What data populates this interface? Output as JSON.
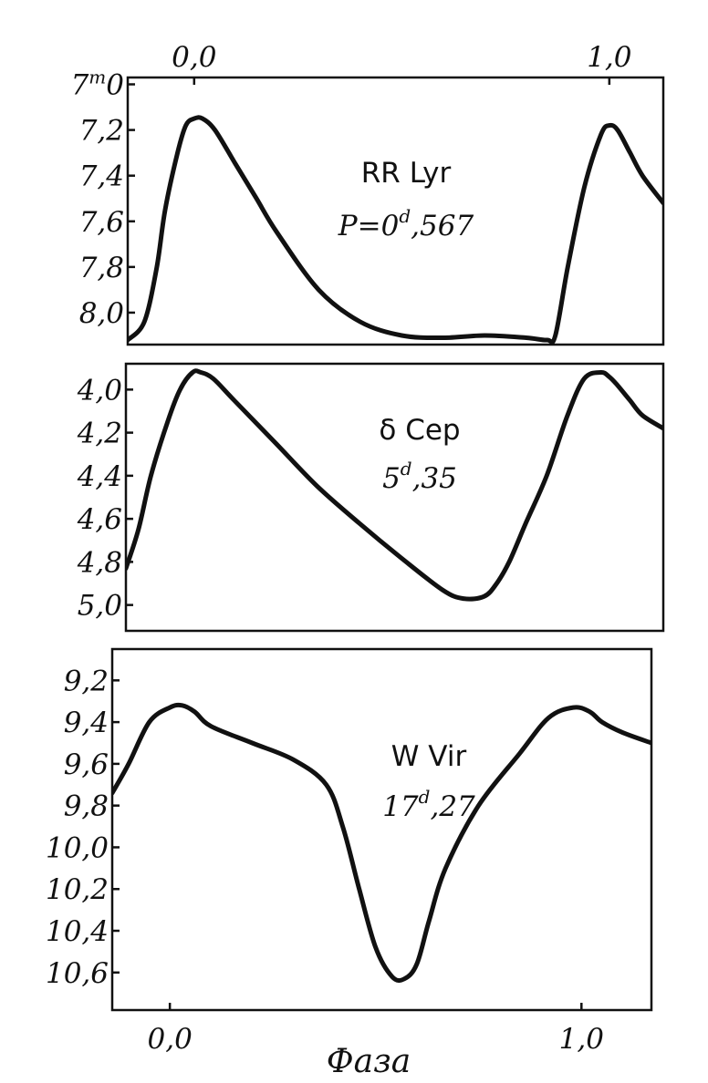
{
  "x_label": "Фаза",
  "chart_data": [
    {
      "type": "line",
      "name": "RR Lyr",
      "period_prefix": "P=0",
      "period_sup": "d",
      "period_suffix": ",567",
      "x_axis_position": "top",
      "x_ticks": [
        0.0,
        1.0
      ],
      "x_tick_labels": [
        "0,0",
        "1,0"
      ],
      "xlim": [
        -0.16,
        1.13
      ],
      "ylim": [
        8.14,
        6.97
      ],
      "y_ticks": [
        7.0,
        7.2,
        7.4,
        7.6,
        7.8,
        8.0
      ],
      "y_tick_labels": [
        "7",
        "7,2",
        "7,4",
        "7,6",
        "7,8",
        "8,0"
      ],
      "y_first_sup": "m",
      "y_first_suffix": "0",
      "x": [
        -0.16,
        -0.12,
        -0.09,
        -0.07,
        -0.04,
        -0.02,
        0.0,
        0.02,
        0.05,
        0.1,
        0.15,
        0.2,
        0.3,
        0.4,
        0.5,
        0.6,
        0.7,
        0.8,
        0.85,
        0.87,
        0.9,
        0.94,
        0.98,
        1.0,
        1.02,
        1.05,
        1.08,
        1.13
      ],
      "y": [
        8.12,
        8.04,
        7.8,
        7.55,
        7.3,
        7.18,
        7.15,
        7.15,
        7.2,
        7.35,
        7.5,
        7.65,
        7.9,
        8.04,
        8.1,
        8.11,
        8.1,
        8.11,
        8.12,
        8.1,
        7.8,
        7.45,
        7.22,
        7.18,
        7.2,
        7.3,
        7.4,
        7.52
      ]
    },
    {
      "type": "line",
      "name": "δ Cep",
      "period_prefix": "5",
      "period_sup": "d",
      "period_suffix": ",35",
      "x_axis_position": "none",
      "xlim": [
        -0.16,
        1.13
      ],
      "ylim": [
        5.12,
        3.88
      ],
      "y_ticks": [
        4.0,
        4.2,
        4.4,
        4.6,
        4.8,
        5.0
      ],
      "y_tick_labels": [
        "4,0",
        "4,2",
        "4,4",
        "4,6",
        "4,8",
        "5,0"
      ],
      "x": [
        -0.16,
        -0.13,
        -0.1,
        -0.06,
        -0.03,
        0.0,
        0.02,
        0.05,
        0.1,
        0.2,
        0.3,
        0.4,
        0.5,
        0.6,
        0.65,
        0.7,
        0.73,
        0.76,
        0.8,
        0.85,
        0.9,
        0.94,
        0.98,
        1.0,
        1.02,
        1.05,
        1.08,
        1.13
      ],
      "y": [
        4.83,
        4.65,
        4.4,
        4.15,
        4.0,
        3.92,
        3.92,
        3.95,
        4.05,
        4.25,
        4.45,
        4.62,
        4.78,
        4.93,
        4.97,
        4.96,
        4.9,
        4.8,
        4.62,
        4.4,
        4.12,
        3.95,
        3.92,
        3.94,
        3.98,
        4.05,
        4.12,
        4.18
      ]
    },
    {
      "type": "line",
      "name": "W Vir",
      "period_prefix": "17",
      "period_sup": "d",
      "period_suffix": ",27",
      "x_axis_position": "bottom",
      "x_ticks": [
        0.0,
        1.0
      ],
      "x_tick_labels": [
        "0,0",
        "1,0"
      ],
      "xlim": [
        -0.14,
        1.17
      ],
      "ylim": [
        10.78,
        9.05
      ],
      "y_ticks": [
        9.2,
        9.4,
        9.6,
        9.8,
        10.0,
        10.2,
        10.4,
        10.6
      ],
      "y_tick_labels": [
        "9,2",
        "9,4",
        "9,6",
        "9,8",
        "10,0",
        "10,2",
        "10,4",
        "10,6"
      ],
      "x": [
        -0.14,
        -0.1,
        -0.05,
        0.0,
        0.03,
        0.06,
        0.1,
        0.2,
        0.3,
        0.38,
        0.42,
        0.46,
        0.5,
        0.54,
        0.57,
        0.6,
        0.63,
        0.67,
        0.75,
        0.85,
        0.92,
        0.98,
        1.02,
        1.05,
        1.1,
        1.17
      ],
      "y": [
        9.74,
        9.6,
        9.4,
        9.33,
        9.32,
        9.35,
        9.42,
        9.5,
        9.58,
        9.7,
        9.9,
        10.2,
        10.48,
        10.62,
        10.63,
        10.56,
        10.35,
        10.1,
        9.8,
        9.55,
        9.38,
        9.33,
        9.35,
        9.4,
        9.45,
        9.5
      ]
    }
  ]
}
